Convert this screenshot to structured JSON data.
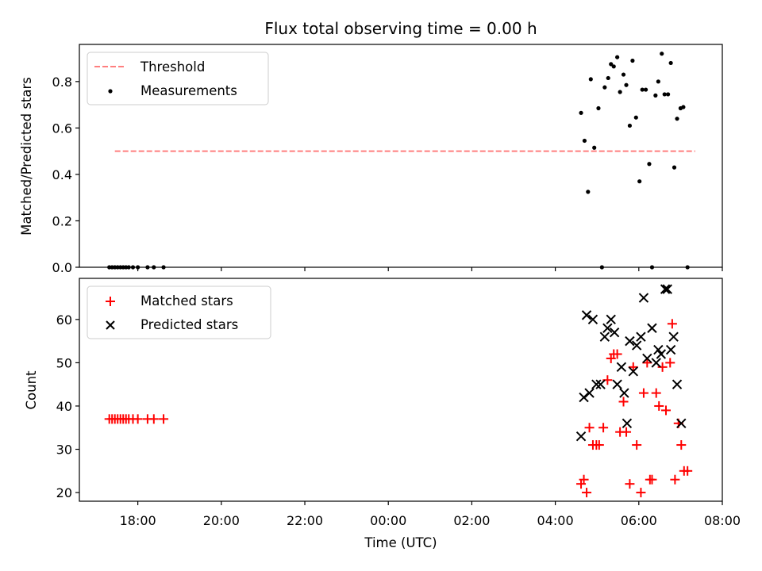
{
  "chart_data": [
    {
      "type": "scatter",
      "title": "Flux total observing time = 0.00 h",
      "ylabel": "Matched/Predicted stars",
      "xlabel": "",
      "ylim": [
        0.0,
        0.96
      ],
      "yticks": [
        0.0,
        0.2,
        0.4,
        0.6,
        0.8
      ],
      "ytick_labels": [
        "0.0",
        "0.2",
        "0.4",
        "0.6",
        "0.8"
      ],
      "legend": {
        "placement": "upper-left",
        "entries": [
          "Threshold",
          "Measurements"
        ]
      },
      "threshold": {
        "name": "Threshold",
        "value": 0.5,
        "x_start": "17:27",
        "x_end": "07:21",
        "color": "#ff7f7f",
        "style": "dashed"
      },
      "series": [
        {
          "name": "Measurements",
          "color": "#000000",
          "marker": "dot",
          "points": [
            [
              "17:19",
              0.0
            ],
            [
              "17:23",
              0.0
            ],
            [
              "17:27",
              0.0
            ],
            [
              "17:31",
              0.0
            ],
            [
              "17:35",
              0.0
            ],
            [
              "17:39",
              0.0
            ],
            [
              "17:43",
              0.0
            ],
            [
              "17:47",
              0.0
            ],
            [
              "17:53",
              0.0
            ],
            [
              "18:00",
              0.0
            ],
            [
              "18:14",
              0.0
            ],
            [
              "18:23",
              0.0
            ],
            [
              "18:37",
              0.0
            ],
            [
              "04:37",
              0.665
            ],
            [
              "04:42",
              0.545
            ],
            [
              "04:47",
              0.325
            ],
            [
              "04:51",
              0.81
            ],
            [
              "04:56",
              0.515
            ],
            [
              "05:02",
              0.685
            ],
            [
              "05:07",
              0.0
            ],
            [
              "05:11",
              0.775
            ],
            [
              "05:16",
              0.815
            ],
            [
              "05:20",
              0.875
            ],
            [
              "05:24",
              0.865
            ],
            [
              "05:29",
              0.905
            ],
            [
              "05:33",
              0.755
            ],
            [
              "05:38",
              0.83
            ],
            [
              "05:42",
              0.785
            ],
            [
              "05:47",
              0.61
            ],
            [
              "05:51",
              0.89
            ],
            [
              "05:56",
              0.645
            ],
            [
              "06:01",
              0.37
            ],
            [
              "06:05",
              0.765
            ],
            [
              "06:10",
              0.765
            ],
            [
              "06:15",
              0.445
            ],
            [
              "06:19",
              0.0
            ],
            [
              "06:24",
              0.74
            ],
            [
              "06:28",
              0.8
            ],
            [
              "06:33",
              0.92
            ],
            [
              "06:37",
              0.745
            ],
            [
              "06:42",
              0.745
            ],
            [
              "06:46",
              0.88
            ],
            [
              "06:51",
              0.43
            ],
            [
              "06:55",
              0.64
            ],
            [
              "07:00",
              0.685
            ],
            [
              "07:04",
              0.69
            ],
            [
              "07:10",
              0.0
            ]
          ]
        }
      ]
    },
    {
      "type": "scatter",
      "title": "",
      "ylabel": "Count",
      "xlabel": "Time (UTC)",
      "ylim": [
        18.0,
        69.5
      ],
      "yticks": [
        20,
        30,
        40,
        50,
        60
      ],
      "ytick_labels": [
        "20",
        "30",
        "40",
        "50",
        "60"
      ],
      "xticks": [
        "18:00",
        "20:00",
        "22:00",
        "00:00",
        "02:00",
        "04:00",
        "06:00",
        "08:00"
      ],
      "xtick_labels": [
        "18:00",
        "20:00",
        "22:00",
        "00:00",
        "02:00",
        "04:00",
        "06:00",
        "08:00"
      ],
      "legend": {
        "placement": "upper-left",
        "entries": [
          "Matched stars",
          "Predicted stars"
        ]
      },
      "series": [
        {
          "name": "Matched stars",
          "color": "#ff0000",
          "marker": "plus",
          "points": [
            [
              "17:19",
              37
            ],
            [
              "17:23",
              37
            ],
            [
              "17:27",
              37
            ],
            [
              "17:31",
              37
            ],
            [
              "17:35",
              37
            ],
            [
              "17:39",
              37
            ],
            [
              "17:43",
              37
            ],
            [
              "17:47",
              37
            ],
            [
              "17:53",
              37
            ],
            [
              "18:00",
              37
            ],
            [
              "18:14",
              37
            ],
            [
              "18:23",
              37
            ],
            [
              "18:37",
              37
            ],
            [
              "04:37",
              22
            ],
            [
              "04:41",
              23
            ],
            [
              "04:45",
              20
            ],
            [
              "04:49",
              35
            ],
            [
              "04:54",
              31
            ],
            [
              "04:59",
              31
            ],
            [
              "05:03",
              31
            ],
            [
              "05:09",
              35
            ],
            [
              "05:15",
              46
            ],
            [
              "05:20",
              51
            ],
            [
              "05:24",
              52
            ],
            [
              "05:29",
              52
            ],
            [
              "05:33",
              34
            ],
            [
              "05:38",
              41
            ],
            [
              "05:42",
              34
            ],
            [
              "05:47",
              22
            ],
            [
              "05:52",
              49
            ],
            [
              "05:57",
              31
            ],
            [
              "06:03",
              20
            ],
            [
              "06:07",
              43
            ],
            [
              "06:12",
              50
            ],
            [
              "06:16",
              23
            ],
            [
              "06:19",
              23
            ],
            [
              "06:25",
              43
            ],
            [
              "06:29",
              40
            ],
            [
              "06:34",
              49
            ],
            [
              "06:39",
              39
            ],
            [
              "06:45",
              50
            ],
            [
              "06:48",
              59
            ],
            [
              "06:52",
              23
            ],
            [
              "06:57",
              36
            ],
            [
              "07:01",
              31
            ],
            [
              "07:05",
              25
            ],
            [
              "07:10",
              25
            ]
          ]
        },
        {
          "name": "Predicted stars",
          "color": "#000000",
          "marker": "x",
          "points": [
            [
              "04:37",
              33
            ],
            [
              "04:41",
              42
            ],
            [
              "04:45",
              61
            ],
            [
              "04:49",
              43
            ],
            [
              "04:54",
              60
            ],
            [
              "04:59",
              45
            ],
            [
              "05:05",
              45
            ],
            [
              "05:11",
              56
            ],
            [
              "05:15",
              58
            ],
            [
              "05:20",
              60
            ],
            [
              "05:25",
              57
            ],
            [
              "05:29",
              45
            ],
            [
              "05:35",
              49
            ],
            [
              "05:39",
              43
            ],
            [
              "05:43",
              36
            ],
            [
              "05:47",
              55
            ],
            [
              "05:52",
              48
            ],
            [
              "05:57",
              54
            ],
            [
              "06:03",
              56
            ],
            [
              "06:07",
              65
            ],
            [
              "06:12",
              51
            ],
            [
              "06:19",
              58
            ],
            [
              "06:25",
              50
            ],
            [
              "06:28",
              53
            ],
            [
              "06:32",
              52
            ],
            [
              "06:38",
              67
            ],
            [
              "06:41",
              67
            ],
            [
              "06:46",
              53
            ],
            [
              "06:50",
              56
            ],
            [
              "06:55",
              45
            ],
            [
              "07:01",
              36
            ]
          ]
        }
      ]
    }
  ]
}
